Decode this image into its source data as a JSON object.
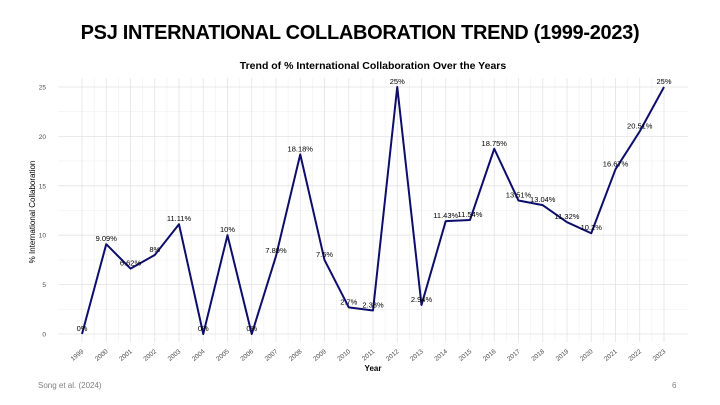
{
  "slide": {
    "title": "PSJ INTERNATIONAL COLLABORATION TREND (1999-2023)",
    "source": "Song et al. (2024)",
    "page_number": "6"
  },
  "chart_data": {
    "type": "line",
    "title": "Trend of % International Collaboration Over the Years",
    "xlabel": "Year",
    "ylabel": "% International Collaboration",
    "ylim": [
      0,
      25
    ],
    "yticks": [
      0,
      5,
      10,
      15,
      20,
      25
    ],
    "grid": true,
    "line_color": "#0d0d6b",
    "categories": [
      "1999",
      "2000",
      "2001",
      "2002",
      "2003",
      "2004",
      "2005",
      "2006",
      "2007",
      "2008",
      "2009",
      "2010",
      "2011",
      "2012",
      "2013",
      "2014",
      "2015",
      "2016",
      "2017",
      "2018",
      "2019",
      "2020",
      "2021",
      "2022",
      "2023"
    ],
    "values": [
      0,
      9.09,
      6.62,
      8,
      11.11,
      0,
      10,
      0,
      7.89,
      18.18,
      7.5,
      2.7,
      2.38,
      25,
      2.94,
      11.43,
      11.54,
      18.75,
      13.51,
      13.04,
      11.32,
      10.2,
      16.67,
      20.51,
      25
    ],
    "data_labels": [
      "0%",
      "9.09%",
      "6.62%",
      "8%",
      "11.11%",
      "0%",
      "10%",
      "0%",
      "7.89%",
      "18.18%",
      "7.5%",
      "2.7%",
      "2.38%",
      "25%",
      "2.94%",
      "11.43%",
      "11.54%",
      "18.75%",
      "13.51%",
      "13.04%",
      "11.32%",
      "10.2%",
      "16.67%",
      "20.51%",
      "25%"
    ]
  }
}
